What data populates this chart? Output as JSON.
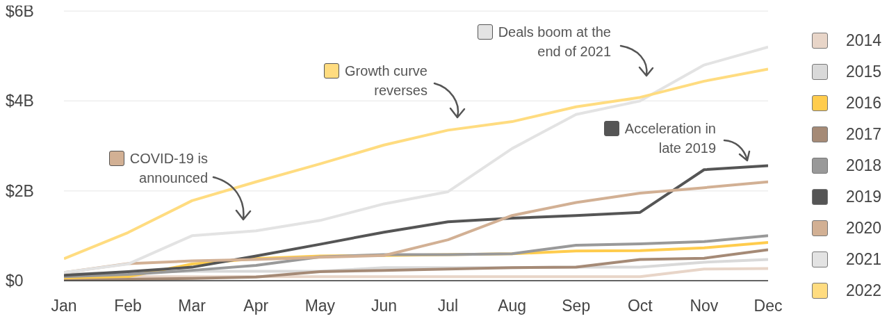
{
  "chart_data": {
    "type": "line",
    "categories": [
      "Jan",
      "Feb",
      "Mar",
      "Apr",
      "May",
      "Jun",
      "Jul",
      "Aug",
      "Sep",
      "Oct",
      "Nov",
      "Dec"
    ],
    "ylim": [
      0,
      6
    ],
    "yticks": [
      {
        "value": 0,
        "label": "$0"
      },
      {
        "value": 2,
        "label": "$2B"
      },
      {
        "value": 4,
        "label": "$4B"
      },
      {
        "value": 6,
        "label": "$6B"
      }
    ],
    "grid": "y",
    "legend": "right",
    "marker": "none",
    "line_style": "solid",
    "series": [
      {
        "name": "2014",
        "color": "#e8d5c8",
        "values": [
          0.03,
          0.09,
          0.09,
          0.09,
          0.09,
          0.09,
          0.09,
          0.09,
          0.09,
          0.09,
          0.26,
          0.27
        ]
      },
      {
        "name": "2015",
        "color": "#d9d9d9",
        "values": [
          0.15,
          0.18,
          0.21,
          0.21,
          0.21,
          0.29,
          0.29,
          0.29,
          0.3,
          0.3,
          0.41,
          0.47
        ]
      },
      {
        "name": "2016",
        "color": "#ffcc4d",
        "values": [
          0.05,
          0.09,
          0.37,
          0.49,
          0.55,
          0.56,
          0.58,
          0.6,
          0.66,
          0.67,
          0.73,
          0.85
        ]
      },
      {
        "name": "2017",
        "color": "#a58a76",
        "values": [
          0.0,
          0.03,
          0.05,
          0.08,
          0.2,
          0.23,
          0.26,
          0.29,
          0.3,
          0.47,
          0.5,
          0.69
        ]
      },
      {
        "name": "2018",
        "color": "#999999",
        "values": [
          0.09,
          0.14,
          0.23,
          0.34,
          0.53,
          0.58,
          0.58,
          0.6,
          0.79,
          0.82,
          0.87,
          1.0
        ]
      },
      {
        "name": "2019",
        "color": "#555555",
        "values": [
          0.12,
          0.2,
          0.3,
          0.55,
          0.81,
          1.08,
          1.31,
          1.39,
          1.45,
          1.52,
          2.47,
          2.56
        ]
      },
      {
        "name": "2020",
        "color": "#d2b094",
        "values": [
          0.18,
          0.38,
          0.44,
          0.47,
          0.52,
          0.56,
          0.91,
          1.45,
          1.74,
          1.95,
          2.07,
          2.2
        ]
      },
      {
        "name": "2021",
        "color": "#e3e3e3",
        "values": [
          0.18,
          0.37,
          1.0,
          1.11,
          1.34,
          1.71,
          1.98,
          2.94,
          3.7,
          4.0,
          4.8,
          5.2
        ]
      },
      {
        "name": "2022",
        "color": "#ffdc80",
        "values": [
          0.49,
          1.07,
          1.78,
          2.2,
          2.6,
          3.02,
          3.35,
          3.54,
          3.87,
          4.08,
          4.44,
          4.71
        ]
      }
    ],
    "annotations": [
      "COVID-19 is announced",
      "Growth curve reverses",
      "Deals boom at the end of 2021",
      "Acceleration in late 2019"
    ]
  }
}
